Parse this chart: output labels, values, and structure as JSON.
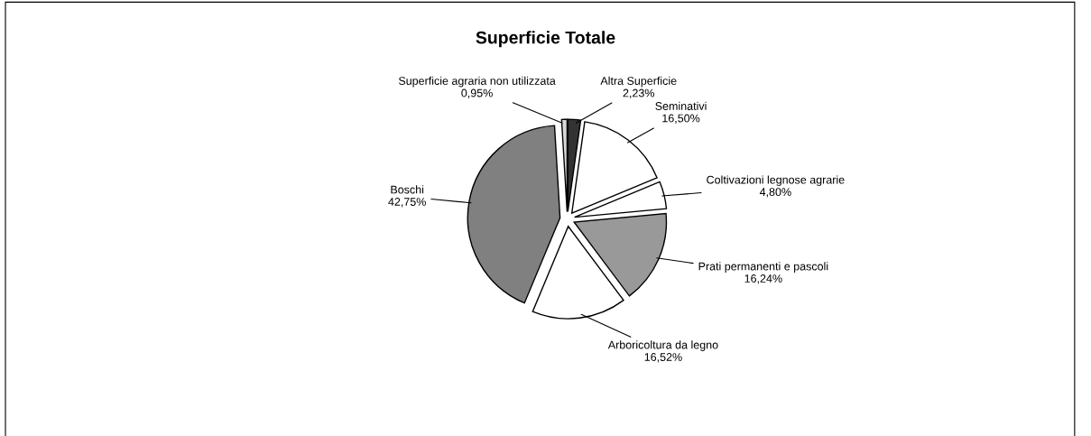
{
  "chart_data": {
    "type": "pie",
    "title": "Superficie Totale",
    "categories": [
      "Altra Superficie",
      "Seminativi",
      "Coltivazioni legnose agrarie",
      "Prati permanenti e pascoli",
      "Arboricoltura da legno",
      "Boschi",
      "Superficie agraria non utilizzata"
    ],
    "values": [
      2.23,
      16.5,
      4.8,
      16.24,
      16.52,
      42.75,
      0.95
    ],
    "value_labels": [
      "2,23%",
      "16,50%",
      "4,80%",
      "16,24%",
      "16,52%",
      "42,75%",
      "0,95%"
    ],
    "colors": [
      "#333333",
      "#ffffff",
      "#ffffff",
      "#999999",
      "#ffffff",
      "#808080",
      "#d9d9d9"
    ]
  }
}
